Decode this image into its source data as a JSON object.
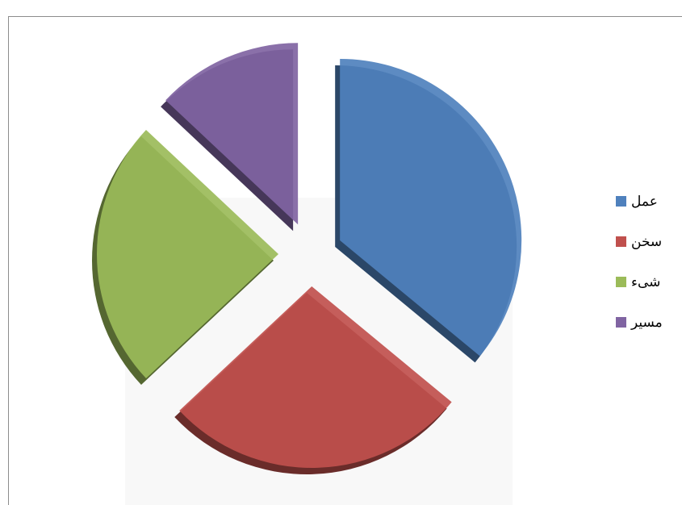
{
  "chart_data": {
    "type": "pie",
    "categories": [
      "عمل",
      "سخن",
      "شیء",
      "مسیر"
    ],
    "values": [
      36,
      27,
      24,
      13
    ],
    "colors": [
      "#4f81bd",
      "#c0504d",
      "#9bbb59",
      "#8064a2"
    ],
    "legend": "right"
  }
}
